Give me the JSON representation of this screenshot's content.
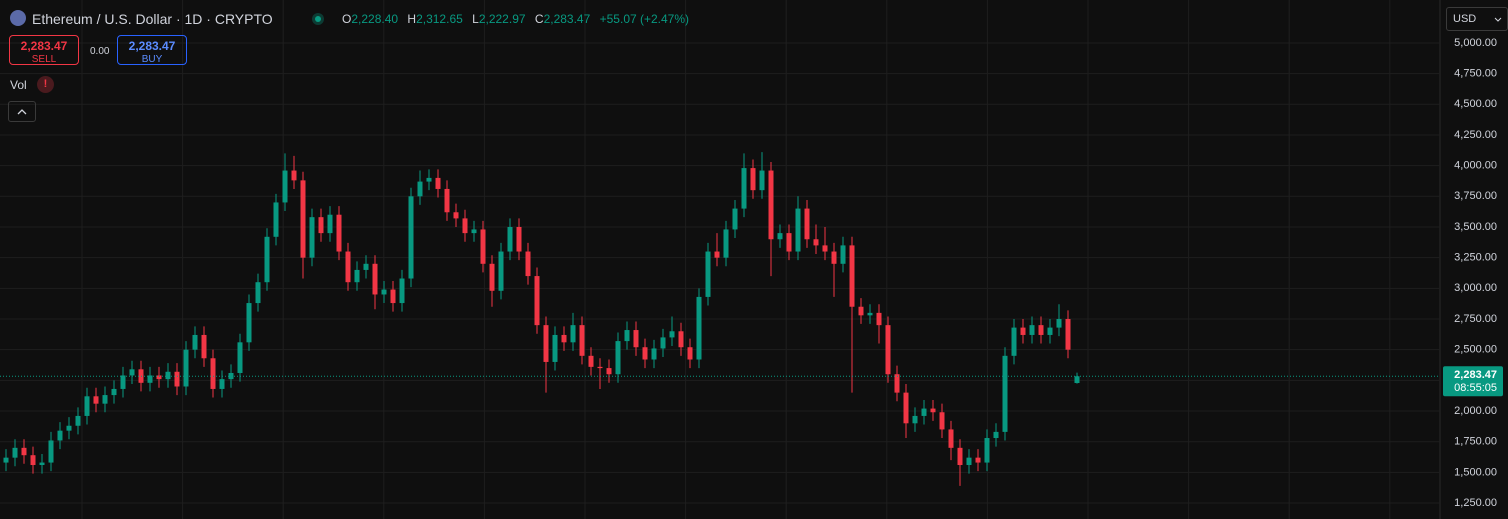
{
  "header": {
    "title": "Ethereum / U.S. Dollar · 1D · CRYPTO",
    "ohlc": [
      {
        "key": "O",
        "value": "2,228.40"
      },
      {
        "key": "H",
        "value": "2,312.65"
      },
      {
        "key": "L",
        "value": "2,222.97"
      },
      {
        "key": "C",
        "value": "2,283.47"
      }
    ],
    "change": "+55.07 (+2.47%)",
    "sell": {
      "price": "2,283.47",
      "label": "SELL"
    },
    "spread": "0.00",
    "buy": {
      "price": "2,283.47",
      "label": "BUY"
    },
    "volume_label": "Vol",
    "volume_warning": "!",
    "currency": "USD",
    "countdown": "08:55:05"
  },
  "chart_data": {
    "type": "candlestick",
    "up_color": "#089981",
    "down_color": "#f23645",
    "ylim": [
      1120,
      5350
    ],
    "yticks": [
      {
        "value": 5000,
        "label": "5,000.00"
      },
      {
        "value": 4750,
        "label": "4,750.00"
      },
      {
        "value": 4500,
        "label": "4,500.00"
      },
      {
        "value": 4250,
        "label": "4,250.00"
      },
      {
        "value": 4000,
        "label": "4,000.00"
      },
      {
        "value": 3750,
        "label": "3,750.00"
      },
      {
        "value": 3500,
        "label": "3,500.00"
      },
      {
        "value": 3250,
        "label": "3,250.00"
      },
      {
        "value": 3000,
        "label": "3,000.00"
      },
      {
        "value": 2750,
        "label": "2,750.00"
      },
      {
        "value": 2500,
        "label": "2,500.00"
      },
      {
        "value": 2250,
        "label": "2,250.00"
      },
      {
        "value": 2000,
        "label": "2,000.00"
      },
      {
        "value": 1750,
        "label": "1,750.00"
      },
      {
        "value": 1500,
        "label": "1,500.00"
      },
      {
        "value": 1250,
        "label": "1,250.00"
      }
    ],
    "grid": true,
    "last_price": {
      "value": 2283.47,
      "label": "2,283.47"
    },
    "open": [
      1580,
      1620,
      1700,
      1640,
      1560,
      1580,
      1760,
      1840,
      1880,
      1960,
      2120,
      2060,
      2130,
      2180,
      2290,
      2340,
      2230,
      2290,
      2260,
      2320,
      2200,
      2500,
      2620,
      2430,
      2180,
      2260,
      2310,
      2560,
      2880,
      3050,
      3420,
      3700,
      3960,
      3880,
      3250,
      3580,
      3450,
      3600,
      3300,
      3050,
      3150,
      3200,
      2950,
      2990,
      2880,
      3080,
      3750,
      3870,
      3900,
      3810,
      3620,
      3570,
      3450,
      3480,
      3200,
      2980,
      3300,
      3500,
      3300,
      3100,
      2700,
      2400,
      2620,
      2560,
      2700,
      2450,
      2360,
      2350,
      2300,
      2570,
      2660,
      2520,
      2420,
      2510,
      2600,
      2650,
      2520,
      2420,
      2930,
      3300,
      3250,
      3480,
      3650,
      3980,
      3800,
      3960,
      3400,
      3450,
      3300,
      3650,
      3400,
      3350,
      3300,
      3200,
      3350,
      2850,
      2780,
      2800,
      2700,
      2300,
      2150,
      1900,
      1960,
      2020,
      1990,
      1850,
      1700,
      1560,
      1620,
      1580,
      1780,
      1830,
      2450,
      2680,
      2620,
      2700,
      2620,
      2680,
      2750,
      2228.4
    ],
    "high": [
      1690,
      1770,
      1770,
      1710,
      1650,
      1830,
      1910,
      1950,
      2030,
      2190,
      2190,
      2200,
      2250,
      2360,
      2410,
      2410,
      2360,
      2360,
      2390,
      2390,
      2570,
      2690,
      2690,
      2500,
      2330,
      2380,
      2630,
      2950,
      3120,
      3490,
      3770,
      4100,
      4080,
      3950,
      3650,
      3650,
      3670,
      3670,
      3370,
      3220,
      3270,
      3270,
      3060,
      3060,
      3150,
      3820,
      3960,
      3970,
      3970,
      3880,
      3690,
      3640,
      3550,
      3550,
      3270,
      3370,
      3570,
      3570,
      3370,
      3170,
      2770,
      2690,
      2690,
      2800,
      2770,
      2520,
      2430,
      2420,
      2640,
      2730,
      2730,
      2590,
      2580,
      2670,
      2770,
      2720,
      2590,
      3000,
      3370,
      3450,
      3550,
      3720,
      4100,
      4050,
      4110,
      4030,
      3520,
      3520,
      3750,
      3720,
      3520,
      3500,
      3370,
      3420,
      3420,
      2920,
      2870,
      2870,
      2770,
      2370,
      2220,
      2030,
      2090,
      2090,
      2060,
      1920,
      1770,
      1690,
      1690,
      1850,
      1900,
      2520,
      2750,
      2750,
      2770,
      2770,
      2750,
      2870,
      2820,
      2312.65
    ],
    "low": [
      1510,
      1550,
      1570,
      1490,
      1490,
      1510,
      1690,
      1770,
      1810,
      1890,
      1990,
      1990,
      2060,
      2110,
      2220,
      2160,
      2160,
      2190,
      2190,
      2130,
      2130,
      2430,
      2360,
      2110,
      2110,
      2190,
      2240,
      2490,
      2810,
      2980,
      3350,
      3630,
      3810,
      3080,
      3180,
      3380,
      3380,
      3230,
      2980,
      2980,
      3080,
      2830,
      2880,
      2810,
      2810,
      3010,
      3680,
      3800,
      3740,
      3550,
      3500,
      3380,
      3380,
      3130,
      2850,
      2910,
      3230,
      3230,
      3030,
      2630,
      2150,
      2330,
      2490,
      2490,
      2380,
      2290,
      2180,
      2230,
      2230,
      2500,
      2450,
      2350,
      2350,
      2440,
      2530,
      2450,
      2350,
      2350,
      2860,
      3180,
      3180,
      3410,
      3580,
      3730,
      3730,
      3100,
      3330,
      3230,
      3230,
      3330,
      3280,
      3230,
      2930,
      3130,
      2150,
      2710,
      2710,
      2550,
      2230,
      2080,
      1780,
      1830,
      1890,
      1920,
      1780,
      1600,
      1390,
      1490,
      1510,
      1510,
      1710,
      1760,
      2380,
      2550,
      2550,
      2550,
      2550,
      2610,
      2430,
      2222.97
    ],
    "close": [
      1620,
      1700,
      1640,
      1560,
      1580,
      1760,
      1840,
      1880,
      1960,
      2120,
      2060,
      2130,
      2180,
      2290,
      2340,
      2230,
      2290,
      2260,
      2320,
      2200,
      2500,
      2620,
      2430,
      2180,
      2260,
      2310,
      2560,
      2880,
      3050,
      3420,
      3700,
      3960,
      3880,
      3250,
      3580,
      3450,
      3600,
      3300,
      3050,
      3150,
      3200,
      2950,
      2990,
      2880,
      3080,
      3750,
      3870,
      3900,
      3810,
      3620,
      3570,
      3450,
      3480,
      3200,
      2980,
      3300,
      3500,
      3300,
      3100,
      2700,
      2400,
      2620,
      2560,
      2700,
      2450,
      2360,
      2350,
      2300,
      2570,
      2660,
      2520,
      2420,
      2510,
      2600,
      2650,
      2520,
      2420,
      2930,
      3300,
      3250,
      3480,
      3650,
      3980,
      3800,
      3960,
      3400,
      3450,
      3300,
      3650,
      3400,
      3350,
      3300,
      3200,
      3350,
      2850,
      2780,
      2800,
      2700,
      2300,
      2150,
      1900,
      1960,
      2020,
      1990,
      1850,
      1700,
      1560,
      1620,
      1580,
      1780,
      1830,
      2450,
      2680,
      2620,
      2700,
      2620,
      2680,
      2750,
      2500,
      2283.47
    ]
  }
}
